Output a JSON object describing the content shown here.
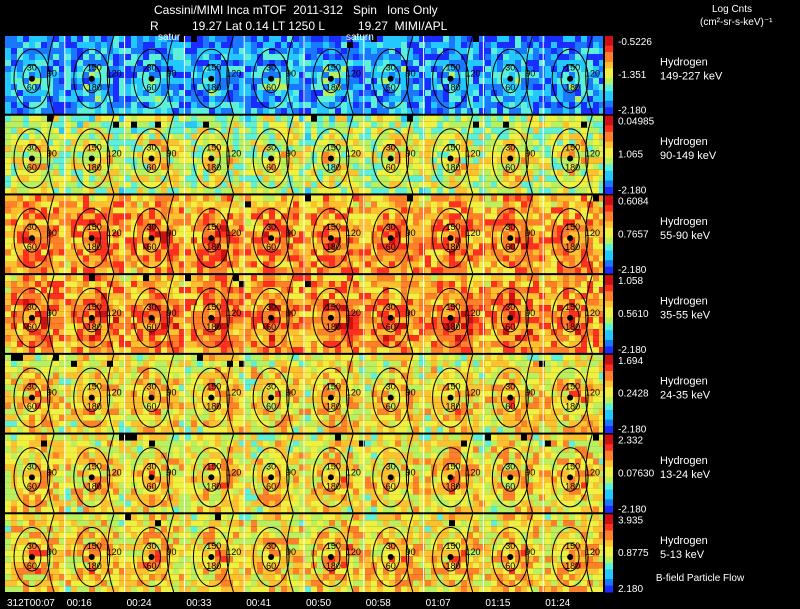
{
  "header": {
    "title": "Cassini/MIMI Inca mTOF  2011-312   Spin   Ions Only",
    "subtitle": "R          19.27 Lat 0.14 LT 1250 L          19.27  MIMI/APL",
    "units_line1": "Log Cnts",
    "units_line2": "(cm²-sr-s-keV)⁻¹"
  },
  "footer": {
    "caption": "B-field Particle Flow"
  },
  "overlay_labels": {
    "saturn_1": "satur",
    "saturn_2": "saturn"
  },
  "colors": {
    "background": "#000000",
    "text": "#ffffff",
    "colormap": [
      "#1a2cff",
      "#1a78ff",
      "#22c8ff",
      "#5cf0d8",
      "#b8f060",
      "#f0f040",
      "#ffc030",
      "#ff8028",
      "#ff3020",
      "#d01010"
    ]
  },
  "chart_data": {
    "type": "heatmap",
    "x": [
      "312T00:07",
      "00:16",
      "00:24",
      "00:33",
      "00:41",
      "00:50",
      "00:58",
      "01:07",
      "01:15",
      "01:24"
    ],
    "contour_levels": [
      "30",
      "60",
      "90",
      "120",
      "150",
      "180"
    ],
    "panels": [
      {
        "species": "Hydrogen",
        "energy": "149-227 keV",
        "cbar_max": "-0.5226",
        "cbar_mid": "-1.351",
        "cbar_min": "-2.180",
        "min": -2.18,
        "mid": -1.351,
        "max": -0.5226,
        "typical_level": 0.3
      },
      {
        "species": "Hydrogen",
        "energy": "90-149 keV",
        "cbar_max": "0.04985",
        "cbar_mid": "1.065",
        "cbar_min": "-2.180",
        "min": -2.18,
        "mid": 1.065,
        "max": 0.04985,
        "typical_level": 0.6
      },
      {
        "species": "Hydrogen",
        "energy": "55-90 keV",
        "cbar_max": "0.6084",
        "cbar_mid": "0.7657",
        "cbar_min": "-2.180",
        "min": -2.18,
        "mid": 0.7657,
        "max": 0.6084,
        "typical_level": 0.8
      },
      {
        "species": "Hydrogen",
        "energy": "35-55 keV",
        "cbar_max": "1.058",
        "cbar_mid": "0.5610",
        "cbar_min": "-2.180",
        "min": -2.18,
        "mid": 0.561,
        "max": 1.058,
        "typical_level": 0.82
      },
      {
        "species": "Hydrogen",
        "energy": "24-35 keV",
        "cbar_max": "1.694",
        "cbar_mid": "0.2428",
        "cbar_min": "-2.180",
        "min": -2.18,
        "mid": 0.2428,
        "max": 1.694,
        "typical_level": 0.68
      },
      {
        "species": "Hydrogen",
        "energy": "13-24 keV",
        "cbar_max": "2.332",
        "cbar_mid": "0.07630",
        "cbar_min": "-2.180",
        "min": -2.18,
        "mid": 0.0763,
        "max": 2.332,
        "typical_level": 0.68
      },
      {
        "species": "Hydrogen",
        "energy": "5-13 keV",
        "cbar_max": "3.935",
        "cbar_mid": "0.8775",
        "cbar_min": "2.180",
        "min": 2.18,
        "mid": 0.8775,
        "max": 3.935,
        "typical_level": 0.7
      }
    ]
  }
}
